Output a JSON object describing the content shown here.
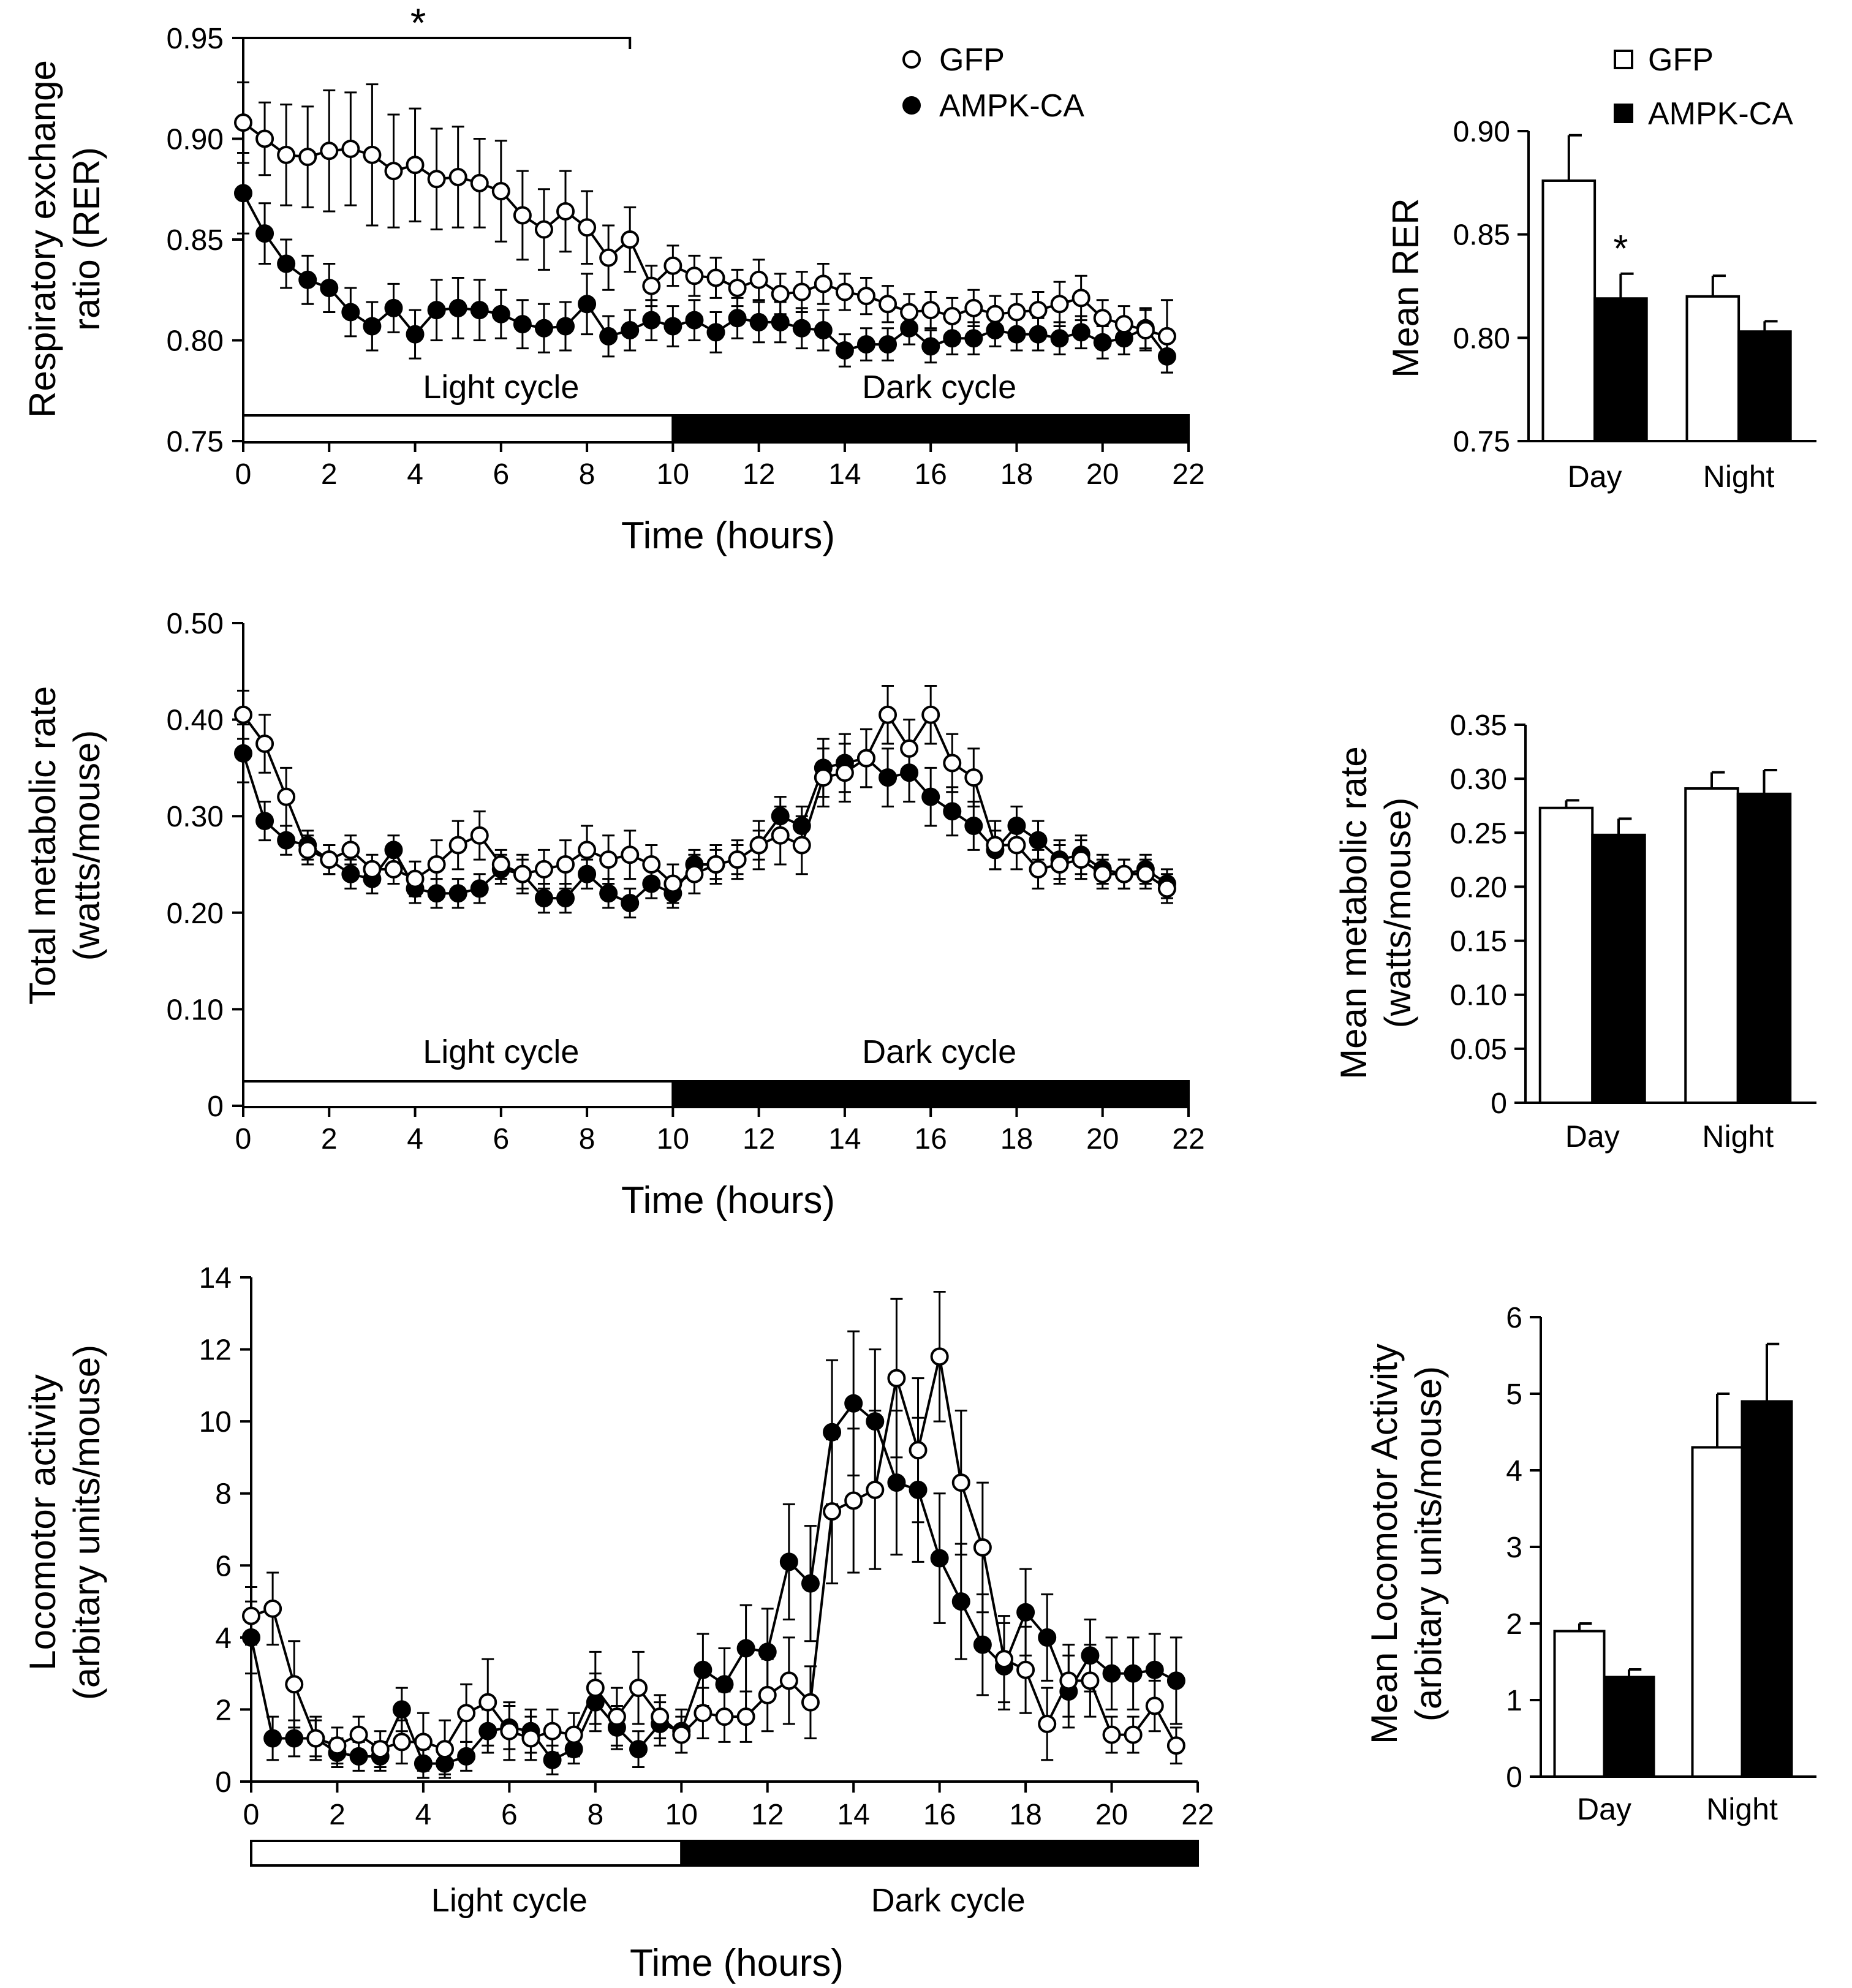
{
  "figure": {
    "colors": {
      "ink": "#000000",
      "open_fill": "#ffffff",
      "ampk_fill": "#000000"
    }
  },
  "chart_data": [
    {
      "id": "rer_time",
      "type": "line",
      "title": "",
      "xlabel": "Time (hours)",
      "ylabel": [
        "Respiratory exchange",
        "ratio (RER)"
      ],
      "xlim": [
        0,
        22
      ],
      "ylim": [
        0.75,
        0.95
      ],
      "xticks": [
        0,
        2,
        4,
        6,
        8,
        10,
        12,
        14,
        16,
        18,
        20,
        22
      ],
      "yticks": [
        0.75,
        0.8,
        0.85,
        0.9,
        0.95
      ],
      "ytick_decimals": 2,
      "light_dark": {
        "light_label": "Light cycle",
        "dark_label": "Dark cycle",
        "switch": 10,
        "end": 22
      },
      "legend": {
        "position": "top-center",
        "entries": [
          "GFP",
          "AMPK-CA"
        ]
      },
      "significance": {
        "from": 0,
        "to": 9,
        "label": "*"
      },
      "x": [
        0,
        0.5,
        1,
        1.5,
        2,
        2.5,
        3,
        3.5,
        4,
        4.5,
        5,
        5.5,
        6,
        6.5,
        7,
        7.5,
        8,
        8.5,
        9,
        9.5,
        10,
        10.5,
        11,
        11.5,
        12,
        12.5,
        13,
        13.5,
        14,
        14.5,
        15,
        15.5,
        16,
        16.5,
        17,
        17.5,
        18,
        18.5,
        19,
        19.5,
        20,
        20.5,
        21,
        21.5
      ],
      "series": [
        {
          "name": "GFP",
          "marker": "open-circle",
          "values": [
            0.908,
            0.9,
            0.892,
            0.891,
            0.894,
            0.895,
            0.892,
            0.884,
            0.887,
            0.88,
            0.881,
            0.878,
            0.874,
            0.862,
            0.855,
            0.864,
            0.856,
            0.841,
            0.85,
            0.827,
            0.837,
            0.832,
            0.831,
            0.826,
            0.83,
            0.823,
            0.824,
            0.828,
            0.824,
            0.822,
            0.818,
            0.814,
            0.815,
            0.812,
            0.816,
            0.813,
            0.814,
            0.815,
            0.818,
            0.821,
            0.811,
            0.808,
            0.805,
            0.802
          ],
          "errors": [
            0.02,
            0.018,
            0.025,
            0.025,
            0.03,
            0.028,
            0.035,
            0.028,
            0.028,
            0.025,
            0.025,
            0.022,
            0.025,
            0.022,
            0.02,
            0.02,
            0.018,
            0.016,
            0.016,
            0.01,
            0.01,
            0.01,
            0.01,
            0.009,
            0.01,
            0.01,
            0.01,
            0.01,
            0.009,
            0.009,
            0.009,
            0.009,
            0.009,
            0.009,
            0.009,
            0.009,
            0.009,
            0.009,
            0.011,
            0.011,
            0.009,
            0.009,
            0.01,
            0.018
          ]
        },
        {
          "name": "AMPK-CA",
          "marker": "filled-circle",
          "values": [
            0.873,
            0.853,
            0.838,
            0.83,
            0.826,
            0.814,
            0.807,
            0.816,
            0.803,
            0.815,
            0.816,
            0.815,
            0.813,
            0.808,
            0.806,
            0.807,
            0.818,
            0.802,
            0.805,
            0.81,
            0.807,
            0.81,
            0.804,
            0.811,
            0.809,
            0.809,
            0.806,
            0.805,
            0.795,
            0.798,
            0.798,
            0.806,
            0.797,
            0.801,
            0.801,
            0.805,
            0.803,
            0.803,
            0.801,
            0.804,
            0.799,
            0.801,
            0.806,
            0.792
          ],
          "errors": [
            0.02,
            0.015,
            0.012,
            0.012,
            0.012,
            0.012,
            0.012,
            0.012,
            0.012,
            0.015,
            0.015,
            0.015,
            0.012,
            0.012,
            0.012,
            0.012,
            0.015,
            0.01,
            0.01,
            0.01,
            0.01,
            0.01,
            0.01,
            0.01,
            0.01,
            0.01,
            0.01,
            0.01,
            0.008,
            0.008,
            0.008,
            0.008,
            0.008,
            0.008,
            0.008,
            0.008,
            0.008,
            0.008,
            0.008,
            0.008,
            0.008,
            0.008,
            0.01,
            0.008
          ]
        }
      ]
    },
    {
      "id": "rer_bar",
      "type": "bar",
      "title": "",
      "xlabel": "",
      "ylabel": [
        "Mean RER"
      ],
      "ylim": [
        0.75,
        0.9
      ],
      "yticks": [
        0.75,
        0.8,
        0.85,
        0.9
      ],
      "ytick_decimals": 2,
      "categories": [
        "Day",
        "Night"
      ],
      "legend": {
        "position": "top-right",
        "entries": [
          "GFP",
          "AMPK-CA"
        ]
      },
      "annotations": [
        {
          "category": "Day",
          "series": "AMPK-CA",
          "label": "*"
        }
      ],
      "series": [
        {
          "name": "GFP",
          "fill": "open",
          "values": [
            0.876,
            0.82
          ],
          "errors": [
            0.022,
            0.01
          ]
        },
        {
          "name": "AMPK-CA",
          "fill": "filled",
          "values": [
            0.819,
            0.803
          ],
          "errors": [
            0.012,
            0.005
          ]
        }
      ]
    },
    {
      "id": "metabolic_time",
      "type": "line",
      "title": "",
      "xlabel": "Time (hours)",
      "ylabel": [
        "Total metabolic rate",
        "(watts/mouse)"
      ],
      "xlim": [
        0,
        22
      ],
      "ylim": [
        0,
        0.5
      ],
      "xticks": [
        0,
        2,
        4,
        6,
        8,
        10,
        12,
        14,
        16,
        18,
        20,
        22
      ],
      "yticks": [
        0,
        0.1,
        0.2,
        0.3,
        0.4,
        0.5
      ],
      "ytick_decimals": 2,
      "light_dark": {
        "light_label": "Light cycle",
        "dark_label": "Dark cycle",
        "switch": 10,
        "end": 22
      },
      "x": [
        0,
        0.5,
        1,
        1.5,
        2,
        2.5,
        3,
        3.5,
        4,
        4.5,
        5,
        5.5,
        6,
        6.5,
        7,
        7.5,
        8,
        8.5,
        9,
        9.5,
        10,
        10.5,
        11,
        11.5,
        12,
        12.5,
        13,
        13.5,
        14,
        14.5,
        15,
        15.5,
        16,
        16.5,
        17,
        17.5,
        18,
        18.5,
        19,
        19.5,
        20,
        20.5,
        21,
        21.5
      ],
      "series": [
        {
          "name": "GFP",
          "marker": "open-circle",
          "values": [
            0.405,
            0.375,
            0.32,
            0.265,
            0.255,
            0.265,
            0.245,
            0.245,
            0.235,
            0.25,
            0.27,
            0.28,
            0.25,
            0.24,
            0.245,
            0.25,
            0.265,
            0.255,
            0.26,
            0.25,
            0.23,
            0.24,
            0.25,
            0.255,
            0.27,
            0.28,
            0.27,
            0.34,
            0.345,
            0.36,
            0.405,
            0.37,
            0.405,
            0.355,
            0.34,
            0.27,
            0.27,
            0.245,
            0.25,
            0.255,
            0.24,
            0.24,
            0.24,
            0.225
          ],
          "errors": [
            0.025,
            0.03,
            0.03,
            0.015,
            0.015,
            0.015,
            0.015,
            0.015,
            0.018,
            0.025,
            0.025,
            0.025,
            0.015,
            0.02,
            0.02,
            0.025,
            0.025,
            0.025,
            0.025,
            0.02,
            0.02,
            0.02,
            0.02,
            0.02,
            0.025,
            0.03,
            0.03,
            0.03,
            0.03,
            0.03,
            0.03,
            0.03,
            0.03,
            0.03,
            0.03,
            0.025,
            0.025,
            0.02,
            0.02,
            0.02,
            0.015,
            0.015,
            0.015,
            0.015
          ]
        },
        {
          "name": "AMPK-CA",
          "marker": "filled-circle",
          "values": [
            0.365,
            0.295,
            0.275,
            0.27,
            0.255,
            0.24,
            0.235,
            0.265,
            0.225,
            0.22,
            0.22,
            0.225,
            0.245,
            0.24,
            0.215,
            0.215,
            0.24,
            0.22,
            0.21,
            0.23,
            0.22,
            0.25,
            0.25,
            0.255,
            0.27,
            0.3,
            0.29,
            0.35,
            0.355,
            0.36,
            0.34,
            0.345,
            0.32,
            0.305,
            0.29,
            0.265,
            0.29,
            0.275,
            0.255,
            0.26,
            0.245,
            0.24,
            0.245,
            0.23
          ],
          "errors": [
            0.03,
            0.02,
            0.015,
            0.015,
            0.015,
            0.015,
            0.015,
            0.015,
            0.015,
            0.015,
            0.015,
            0.015,
            0.015,
            0.015,
            0.015,
            0.015,
            0.015,
            0.015,
            0.015,
            0.015,
            0.015,
            0.015,
            0.015,
            0.015,
            0.015,
            0.02,
            0.02,
            0.03,
            0.03,
            0.03,
            0.03,
            0.03,
            0.03,
            0.025,
            0.025,
            0.02,
            0.02,
            0.02,
            0.02,
            0.02,
            0.015,
            0.015,
            0.015,
            0.015
          ]
        }
      ]
    },
    {
      "id": "metabolic_bar",
      "type": "bar",
      "title": "",
      "xlabel": "",
      "ylabel": [
        "Mean metabolic rate",
        "(watts/mouse)"
      ],
      "ylim": [
        0,
        0.35
      ],
      "yticks": [
        0,
        0.05,
        0.1,
        0.15,
        0.2,
        0.25,
        0.3,
        0.35
      ],
      "ytick_decimals": 2,
      "categories": [
        "Day",
        "Night"
      ],
      "series": [
        {
          "name": "GFP",
          "fill": "open",
          "values": [
            0.273,
            0.291
          ],
          "errors": [
            0.007,
            0.015
          ]
        },
        {
          "name": "AMPK-CA",
          "fill": "filled",
          "values": [
            0.248,
            0.286
          ],
          "errors": [
            0.015,
            0.022
          ]
        }
      ]
    },
    {
      "id": "locomotor_time",
      "type": "line",
      "title": "",
      "xlabel": "Time (hours)",
      "ylabel": [
        "Locomotor activity",
        "(arbitary units/mouse)"
      ],
      "xlim": [
        0,
        22
      ],
      "ylim": [
        0,
        14
      ],
      "xticks": [
        0,
        2,
        4,
        6,
        8,
        10,
        12,
        14,
        16,
        18,
        20,
        22
      ],
      "yticks": [
        0,
        2,
        4,
        6,
        8,
        10,
        12,
        14
      ],
      "ytick_decimals": 0,
      "light_dark": {
        "light_label": "Light cycle",
        "dark_label": "Dark cycle",
        "switch": 10,
        "end": 22
      },
      "x": [
        0,
        0.5,
        1,
        1.5,
        2,
        2.5,
        3,
        3.5,
        4,
        4.5,
        5,
        5.5,
        6,
        6.5,
        7,
        7.5,
        8,
        8.5,
        9,
        9.5,
        10,
        10.5,
        11,
        11.5,
        12,
        12.5,
        13,
        13.5,
        14,
        14.5,
        15,
        15.5,
        16,
        16.5,
        17,
        17.5,
        18,
        18.5,
        19,
        19.5,
        20,
        20.5,
        21,
        21.5
      ],
      "series": [
        {
          "name": "GFP",
          "marker": "open-circle",
          "values": [
            4.6,
            4.8,
            2.7,
            1.2,
            1.0,
            1.3,
            0.9,
            1.1,
            1.1,
            0.9,
            1.9,
            2.2,
            1.4,
            1.2,
            1.4,
            1.3,
            2.6,
            1.8,
            2.6,
            1.8,
            1.3,
            1.9,
            1.8,
            1.8,
            2.4,
            2.8,
            2.2,
            7.5,
            7.8,
            8.1,
            11.2,
            9.2,
            11.8,
            8.3,
            6.5,
            3.4,
            3.1,
            1.6,
            2.8,
            2.8,
            1.3,
            1.3,
            2.1,
            1.0
          ],
          "errors": [
            0.8,
            1.0,
            1.2,
            0.6,
            0.5,
            0.5,
            0.5,
            0.6,
            0.8,
            0.8,
            0.8,
            1.2,
            0.8,
            0.6,
            0.6,
            0.6,
            1.0,
            0.8,
            1.0,
            0.6,
            0.5,
            0.7,
            0.7,
            0.7,
            1.0,
            1.2,
            1.0,
            2.0,
            2.0,
            2.2,
            2.2,
            2.0,
            1.8,
            2.0,
            1.8,
            1.2,
            1.2,
            1.0,
            1.0,
            1.0,
            0.5,
            0.5,
            0.7,
            0.5
          ]
        },
        {
          "name": "AMPK-CA",
          "marker": "filled-circle",
          "values": [
            4.0,
            1.2,
            1.2,
            1.2,
            0.8,
            0.7,
            0.7,
            2.0,
            0.5,
            0.5,
            0.7,
            1.4,
            1.5,
            1.4,
            0.6,
            0.9,
            2.2,
            1.5,
            0.9,
            1.6,
            1.4,
            3.1,
            2.7,
            3.7,
            3.6,
            6.1,
            5.5,
            9.7,
            10.5,
            10.0,
            8.3,
            8.1,
            6.2,
            5.0,
            3.8,
            3.2,
            4.7,
            4.0,
            2.5,
            3.5,
            3.0,
            3.0,
            3.1,
            2.8
          ],
          "errors": [
            1.0,
            0.6,
            0.5,
            0.5,
            0.4,
            0.4,
            0.4,
            0.6,
            0.4,
            0.3,
            0.4,
            0.6,
            0.6,
            0.6,
            0.4,
            0.4,
            0.8,
            0.6,
            0.5,
            0.6,
            0.6,
            1.0,
            1.0,
            1.2,
            1.2,
            1.6,
            1.6,
            2.0,
            2.0,
            2.0,
            2.0,
            2.0,
            1.8,
            1.6,
            1.4,
            1.2,
            1.2,
            1.2,
            1.0,
            1.0,
            1.0,
            1.0,
            1.0,
            1.2
          ]
        }
      ]
    },
    {
      "id": "locomotor_bar",
      "type": "bar",
      "title": "",
      "xlabel": "",
      "ylabel": [
        "Mean Locomotor Activity",
        "(arbitary units/mouse)"
      ],
      "ylim": [
        0,
        6
      ],
      "yticks": [
        0,
        1,
        2,
        3,
        4,
        5,
        6
      ],
      "ytick_decimals": 0,
      "categories": [
        "Day",
        "Night"
      ],
      "series": [
        {
          "name": "GFP",
          "fill": "open",
          "values": [
            1.9,
            4.3
          ],
          "errors": [
            0.1,
            0.7
          ]
        },
        {
          "name": "AMPK-CA",
          "fill": "filled",
          "values": [
            1.3,
            4.9
          ],
          "errors": [
            0.1,
            0.75
          ]
        }
      ]
    }
  ]
}
